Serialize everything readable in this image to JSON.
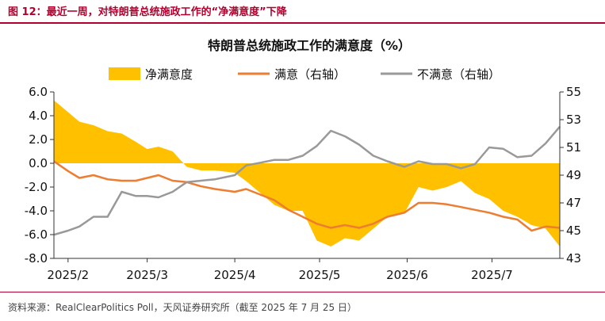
{
  "caption": "图 12：最近一周，对特朗普总统施政工作的“净满意度”下降",
  "source": "资料来源：RealClearPolitics Poll，天风证券研究所（截至 2025 年 7 月 25 日）",
  "colors": {
    "net": "#ffc000",
    "satisfied": "#ed7d31",
    "dissatisfied": "#999999",
    "brand": "#b2002e"
  },
  "chart_data": {
    "type": "area",
    "title": "特朗普总统施政工作的满意度（%）",
    "legend_position": "top",
    "grid": false,
    "x_ticks": [
      "2025/2",
      "2025/3",
      "2025/4",
      "2025/5",
      "2025/6",
      "2025/7"
    ],
    "left_axis": {
      "ylim": [
        -8,
        6
      ],
      "ticks": [
        "6.0",
        "4.0",
        "2.0",
        "0.0",
        "-2.0",
        "-4.0",
        "-6.0",
        "-8.0"
      ]
    },
    "right_axis": {
      "ylim": [
        43,
        55
      ],
      "ticks": [
        "55",
        "53",
        "51",
        "49",
        "47",
        "45",
        "43"
      ]
    },
    "series": [
      {
        "name": "净满意度",
        "axis": "left",
        "kind": "area",
        "x": [
          "2025-01-27",
          "2025-02-01",
          "2025-02-05",
          "2025-02-10",
          "2025-02-15",
          "2025-02-20",
          "2025-02-25",
          "2025-03-01",
          "2025-03-05",
          "2025-03-10",
          "2025-03-15",
          "2025-03-20",
          "2025-03-25",
          "2025-04-01",
          "2025-04-05",
          "2025-04-10",
          "2025-04-15",
          "2025-04-20",
          "2025-04-25",
          "2025-04-30",
          "2025-05-05",
          "2025-05-10",
          "2025-05-15",
          "2025-05-20",
          "2025-05-25",
          "2025-05-31",
          "2025-06-05",
          "2025-06-10",
          "2025-06-15",
          "2025-06-20",
          "2025-06-25",
          "2025-06-30",
          "2025-07-05",
          "2025-07-10",
          "2025-07-15",
          "2025-07-20",
          "2025-07-25"
        ],
        "values": [
          5.3,
          4.3,
          3.5,
          3.2,
          2.7,
          2.5,
          1.8,
          1.2,
          1.4,
          1.0,
          -0.3,
          -0.6,
          -0.6,
          -0.8,
          -1.5,
          -2.5,
          -3.5,
          -4.0,
          -4.0,
          -6.5,
          -7.0,
          -6.3,
          -6.5,
          -5.5,
          -4.5,
          -4.2,
          -2.0,
          -2.3,
          -2.0,
          -1.5,
          -2.5,
          -3.0,
          -4.0,
          -4.5,
          -5.2,
          -5.5,
          -7.0
        ]
      },
      {
        "name": "满意（右轴）",
        "axis": "right",
        "kind": "line",
        "x": [
          "2025-01-27",
          "2025-02-01",
          "2025-02-05",
          "2025-02-10",
          "2025-02-15",
          "2025-02-20",
          "2025-02-25",
          "2025-03-01",
          "2025-03-05",
          "2025-03-10",
          "2025-03-15",
          "2025-03-20",
          "2025-03-25",
          "2025-04-01",
          "2025-04-05",
          "2025-04-10",
          "2025-04-15",
          "2025-04-20",
          "2025-04-25",
          "2025-04-30",
          "2025-05-05",
          "2025-05-10",
          "2025-05-15",
          "2025-05-20",
          "2025-05-25",
          "2025-05-31",
          "2025-06-05",
          "2025-06-10",
          "2025-06-15",
          "2025-06-20",
          "2025-06-25",
          "2025-06-30",
          "2025-07-05",
          "2025-07-10",
          "2025-07-15",
          "2025-07-20",
          "2025-07-25"
        ],
        "values": [
          50.0,
          49.3,
          48.8,
          49.0,
          48.7,
          48.6,
          48.6,
          48.8,
          49.0,
          48.6,
          48.5,
          48.2,
          48.0,
          47.8,
          48.0,
          47.6,
          47.2,
          46.5,
          46.0,
          45.5,
          45.2,
          45.4,
          45.2,
          45.5,
          46.0,
          46.3,
          47.0,
          47.0,
          46.9,
          46.7,
          46.5,
          46.3,
          46.0,
          45.8,
          45.0,
          45.3,
          45.2
        ]
      },
      {
        "name": "不满意（右轴）",
        "axis": "right",
        "kind": "line",
        "x": [
          "2025-01-27",
          "2025-02-01",
          "2025-02-05",
          "2025-02-10",
          "2025-02-15",
          "2025-02-20",
          "2025-02-25",
          "2025-03-01",
          "2025-03-05",
          "2025-03-10",
          "2025-03-15",
          "2025-03-20",
          "2025-03-25",
          "2025-04-01",
          "2025-04-05",
          "2025-04-10",
          "2025-04-15",
          "2025-04-20",
          "2025-04-25",
          "2025-04-30",
          "2025-05-05",
          "2025-05-10",
          "2025-05-15",
          "2025-05-20",
          "2025-05-25",
          "2025-05-31",
          "2025-06-05",
          "2025-06-10",
          "2025-06-15",
          "2025-06-20",
          "2025-06-25",
          "2025-06-30",
          "2025-07-05",
          "2025-07-10",
          "2025-07-15",
          "2025-07-20",
          "2025-07-25"
        ],
        "values": [
          44.7,
          45.0,
          45.3,
          46.0,
          46.0,
          47.8,
          47.5,
          47.5,
          47.4,
          47.8,
          48.5,
          48.6,
          48.7,
          49.0,
          49.7,
          49.9,
          50.1,
          50.1,
          50.4,
          51.1,
          52.2,
          51.8,
          51.2,
          50.4,
          50.0,
          49.6,
          50.0,
          49.8,
          49.8,
          49.5,
          49.8,
          51.0,
          50.9,
          50.3,
          50.4,
          51.3,
          52.5
        ]
      }
    ]
  }
}
